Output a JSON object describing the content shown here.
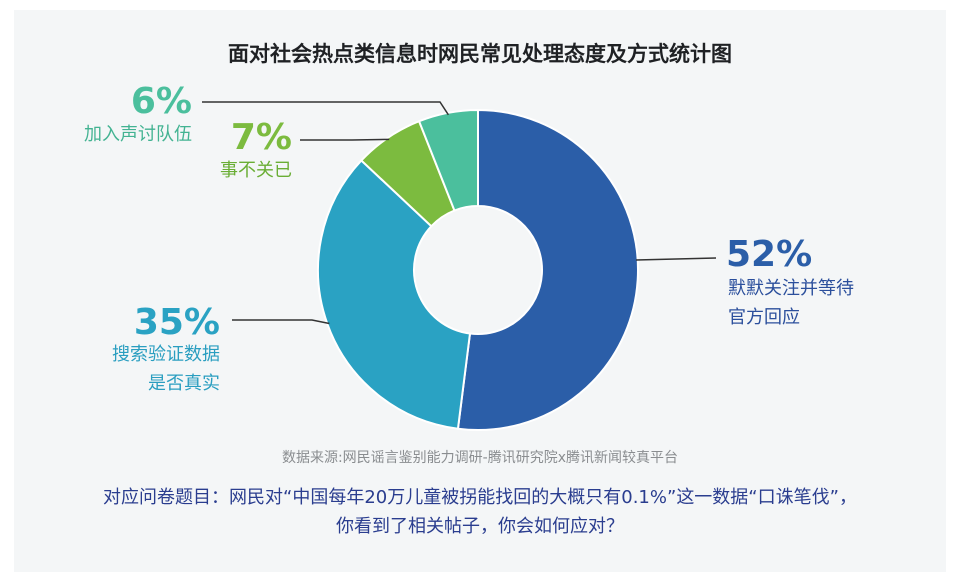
{
  "title": "面对社会热点类信息时网民常见处理态度及方式统计图",
  "source": "数据来源:网民谣言鉴别能力调研-腾讯研究院x腾讯新闻较真平台",
  "question": {
    "line1": "对应问卷题目：网民对“中国每年20万儿童被拐能找回的大概只有0.1%”这一数据“口诛笔伐”，",
    "line2": "你看到了相关帖子，你会如何应对？"
  },
  "chart_data": {
    "type": "pie",
    "donut": true,
    "slices": [
      {
        "pct_label": "52%",
        "value": 52,
        "label_lines": [
          "默默关注并等待",
          "官方回应"
        ],
        "color": "#2b5ea8"
      },
      {
        "pct_label": "35%",
        "value": 35,
        "label_lines": [
          "搜索验证数据",
          "是否真实"
        ],
        "color": "#2aa2c3"
      },
      {
        "pct_label": "7%",
        "value": 7,
        "label_lines": [
          "事不关已"
        ],
        "color": "#7cbb3f"
      },
      {
        "pct_label": "6%",
        "value": 6,
        "label_lines": [
          "加入声讨队伍"
        ],
        "color": "#4bbf9d"
      }
    ]
  }
}
